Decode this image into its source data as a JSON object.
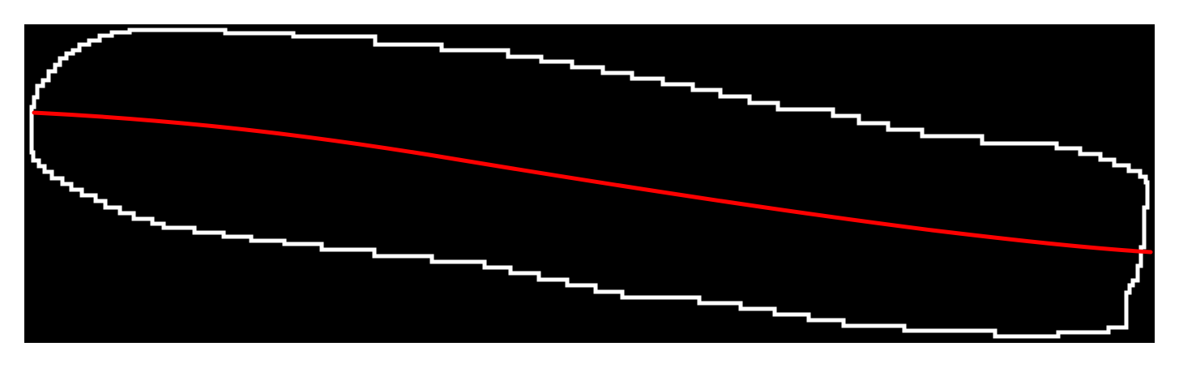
{
  "colors": {
    "page_background": "#ffffff",
    "panel_background": "#000000",
    "outline": "#ffffff",
    "centerline": "#ff0000"
  },
  "shapes": {
    "outline_shape": "rounded-elongated-contour",
    "centerline_shape": "curved-line"
  }
}
